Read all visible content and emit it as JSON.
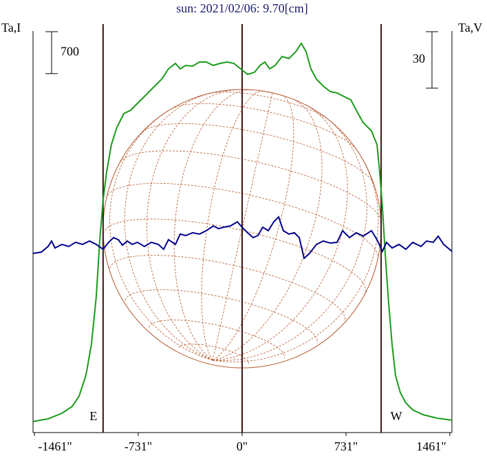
{
  "chart_data": {
    "type": "line",
    "title": "sun: 2021/02/06: 9.70[cm]",
    "y_label": "Ta,I",
    "y2_label": "Ta,V",
    "xlim": [
      -1471,
      1476
    ],
    "ylim": [
      -184,
      6520
    ],
    "y2lim": [
      -96.3,
      117.1
    ],
    "xticks": [
      {
        "value": -1461,
        "label": "-1461\""
      },
      {
        "value": -731,
        "label": "-731\""
      },
      {
        "value": 0,
        "label": "0\""
      },
      {
        "value": 731,
        "label": "731\""
      },
      {
        "value": 1461,
        "label": "1461\""
      }
    ],
    "scale_bars": [
      700,
      30
    ],
    "vertical_lines": [
      -978,
      0,
      978
    ],
    "limb_labels": [
      "E",
      "W"
    ],
    "series": [
      {
        "name": "Ta,I",
        "color": "#1a9a1a",
        "x": [
          -1471,
          -1365,
          -1268,
          -1195,
          -1147,
          -1099,
          -1060,
          -1026,
          -1002,
          -978,
          -953,
          -920,
          -881,
          -832,
          -784,
          -736,
          -687,
          -639,
          -566,
          -518,
          -469,
          -436,
          -397,
          -348,
          -300,
          -252,
          -203,
          -155,
          -106,
          -58,
          -10,
          39,
          87,
          126,
          160,
          194,
          232,
          281,
          329,
          378,
          416,
          450,
          484,
          523,
          571,
          620,
          668,
          716,
          765,
          803,
          852,
          910,
          949,
          968,
          987,
          1007,
          1031,
          1055,
          1079,
          1113,
          1152,
          1200,
          1273,
          1370,
          1476
        ],
        "values": [
          0,
          46,
          138,
          253,
          426,
          771,
          1288,
          2093,
          3013,
          3703,
          4163,
          4623,
          4910,
          5141,
          5198,
          5313,
          5428,
          5543,
          5715,
          5888,
          5980,
          5888,
          5945,
          5934,
          6003,
          6003,
          5945,
          5980,
          6003,
          5980,
          5888,
          5796,
          5831,
          5945,
          6003,
          5888,
          5945,
          6095,
          6060,
          6175,
          6314,
          6175,
          5888,
          5715,
          5600,
          5508,
          5485,
          5428,
          5370,
          5198,
          4991,
          4853,
          4623,
          4163,
          3588,
          2783,
          1978,
          1288,
          771,
          483,
          311,
          196,
          115,
          58,
          23
        ]
      },
      {
        "name": "Ta,V",
        "color": "#00008b",
        "axis": "y2",
        "x": [
          -1471,
          -1413,
          -1365,
          -1341,
          -1316,
          -1268,
          -1220,
          -1171,
          -1123,
          -1074,
          -1026,
          -978,
          -939,
          -905,
          -871,
          -842,
          -808,
          -774,
          -736,
          -687,
          -639,
          -590,
          -552,
          -518,
          -469,
          -436,
          -397,
          -348,
          -300,
          -252,
          -203,
          -165,
          -131,
          -82,
          -34,
          0,
          39,
          77,
          111,
          145,
          184,
          223,
          257,
          290,
          329,
          368,
          402,
          436,
          474,
          523,
          571,
          620,
          668,
          707,
          755,
          803,
          852,
          910,
          949,
          987,
          1016,
          1055,
          1104,
          1152,
          1200,
          1258,
          1297,
          1345,
          1379,
          1418,
          1476
        ],
        "values": [
          -1.1,
          -0.4,
          2.6,
          5.5,
          1.8,
          3.7,
          2.6,
          4.8,
          3.7,
          5.5,
          3.7,
          1.1,
          4.8,
          7.3,
          6.2,
          3.3,
          5.5,
          3.7,
          4.8,
          2.6,
          4.8,
          3.7,
          1.1,
          6.2,
          3.7,
          9.2,
          8.4,
          9.9,
          9.2,
          11.0,
          13.5,
          12.1,
          12.8,
          13.5,
          15.7,
          12.8,
          9.9,
          7.3,
          8.4,
          12.8,
          11.0,
          15.7,
          18.3,
          11.0,
          9.2,
          9.9,
          7.3,
          -3.7,
          -1.1,
          3.7,
          5.5,
          4.4,
          4.8,
          11.0,
          7.3,
          9.9,
          8.1,
          11.0,
          6.2,
          0,
          4.8,
          1.8,
          3.7,
          1.1,
          4.8,
          2.6,
          5.5,
          4.8,
          8.1,
          3.7,
          0
        ]
      }
    ]
  }
}
